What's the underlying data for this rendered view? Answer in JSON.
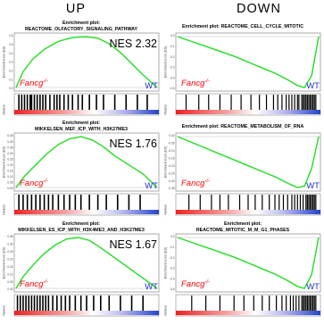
{
  "headers": {
    "up": "UP",
    "down": "DOWN"
  },
  "colors": {
    "curve": "#22dd22",
    "fancg": "#ff0000",
    "wt": "#2233cc",
    "frame": "#888888"
  },
  "chart_data": [
    {
      "type": "line",
      "column": "UP",
      "title": [
        "Enrichment plot:",
        "REACTOME_OLFACTORY_SIGNALING_PATHWAY"
      ],
      "ylabel": "Enrichment score (ES)",
      "ylabel_lower": "Ranked",
      "yticks": [
        "0.6",
        "0.5",
        "0.4",
        "0.3",
        "0.2",
        "0.1",
        "0.0"
      ],
      "nes_label": "NES 2.32",
      "fancg_label": "Fancg-/-",
      "wt_label": "WT",
      "curve": {
        "x": [
          0,
          0.05,
          0.12,
          0.2,
          0.3,
          0.4,
          0.5,
          0.58,
          0.66,
          0.74,
          0.82,
          0.9,
          1.0
        ],
        "y": [
          0,
          0.2,
          0.36,
          0.48,
          0.58,
          0.63,
          0.64,
          0.62,
          0.55,
          0.44,
          0.3,
          0.16,
          0.0
        ]
      },
      "hits": [
        0.02,
        0.04,
        0.06,
        0.08,
        0.1,
        0.11,
        0.13,
        0.15,
        0.17,
        0.19,
        0.21,
        0.24,
        0.27,
        0.29,
        0.31,
        0.34,
        0.37,
        0.4,
        0.44,
        0.47,
        0.52,
        0.57,
        0.62,
        0.7,
        0.78,
        0.86,
        0.93
      ]
    },
    {
      "type": "line",
      "column": "DOWN",
      "title": [
        "Enrichment plot: REACTOME_CELL_CYCLE_MITOTIC"
      ],
      "ylabel": "Enrichment score (ES)",
      "ylabel_lower": "Ranked",
      "yticks": [
        "0.0",
        "-0.1",
        "-0.2",
        "-0.3",
        "-0.4",
        "-0.5"
      ],
      "nes_label": "",
      "fancg_label": "Fancg-/-",
      "wt_label": "WT",
      "curve": {
        "x": [
          0,
          0.1,
          0.2,
          0.3,
          0.4,
          0.5,
          0.6,
          0.7,
          0.78,
          0.85,
          0.9,
          0.95,
          1.0
        ],
        "y": [
          0,
          -0.05,
          -0.1,
          -0.15,
          -0.2,
          -0.26,
          -0.32,
          -0.38,
          -0.44,
          -0.5,
          -0.52,
          -0.4,
          0.0
        ]
      },
      "hits": [
        0.06,
        0.15,
        0.22,
        0.3,
        0.38,
        0.45,
        0.52,
        0.58,
        0.63,
        0.68,
        0.71,
        0.74,
        0.77,
        0.79,
        0.81,
        0.83,
        0.85,
        0.86,
        0.88,
        0.89,
        0.9,
        0.91,
        0.92,
        0.93,
        0.94,
        0.95,
        0.96,
        0.97,
        0.98
      ]
    },
    {
      "type": "line",
      "column": "UP",
      "title": [
        "Enrichment plot:",
        "MIKKELSEN_MEF_ICP_WITH_H3K27ME3"
      ],
      "ylabel": "Enrichment score (ES)",
      "ylabel_lower": "Ranked",
      "yticks": [
        "0.45",
        "0.40",
        "0.35",
        "0.30",
        "0.25",
        "0.20",
        "0.15",
        "0.10",
        "0.05",
        "0.00"
      ],
      "nes_label": "NES 1.76",
      "fancg_label": "Fancg-/-",
      "wt_label": "WT",
      "curve": {
        "x": [
          0,
          0.06,
          0.14,
          0.22,
          0.3,
          0.38,
          0.46,
          0.54,
          0.62,
          0.7,
          0.8,
          0.9,
          1.0
        ],
        "y": [
          0,
          0.1,
          0.2,
          0.3,
          0.38,
          0.43,
          0.45,
          0.42,
          0.36,
          0.28,
          0.2,
          0.12,
          0.0
        ]
      },
      "hits": [
        0.02,
        0.05,
        0.08,
        0.11,
        0.14,
        0.17,
        0.2,
        0.23,
        0.26,
        0.3,
        0.34,
        0.38,
        0.42,
        0.46,
        0.52,
        0.58,
        0.64,
        0.72,
        0.8,
        0.88
      ]
    },
    {
      "type": "line",
      "column": "DOWN",
      "title": [
        "Enrichment plot: REACTOME_METABOLISM_OF_RNA"
      ],
      "ylabel": "Enrichment score (ES)",
      "ylabel_lower": "Ranked",
      "yticks": [
        "0.00",
        "-0.05",
        "-0.10",
        "-0.15",
        "-0.20",
        "-0.25",
        "-0.30",
        "-0.35"
      ],
      "nes_label": "",
      "fancg_label": "Fancg-/-",
      "wt_label": "WT",
      "curve": {
        "x": [
          0,
          0.1,
          0.2,
          0.3,
          0.4,
          0.5,
          0.6,
          0.7,
          0.78,
          0.85,
          0.9,
          0.95,
          1.0
        ],
        "y": [
          0,
          -0.04,
          -0.08,
          -0.12,
          -0.16,
          -0.2,
          -0.24,
          -0.28,
          -0.32,
          -0.35,
          -0.34,
          -0.22,
          0.0
        ]
      },
      "hits": [
        0.08,
        0.16,
        0.24,
        0.3,
        0.36,
        0.44,
        0.5,
        0.55,
        0.6,
        0.65,
        0.69,
        0.72,
        0.75,
        0.78,
        0.81,
        0.83,
        0.85,
        0.87,
        0.89,
        0.91,
        0.92,
        0.93,
        0.94,
        0.95,
        0.96,
        0.97,
        0.98
      ]
    },
    {
      "type": "line",
      "column": "UP",
      "title": [
        "Enrichment plot:",
        "MIKKELSEN_ES_ICP_WITH_H3K4ME3_AND_H3K27ME3"
      ],
      "ylabel": "Enrichment score (ES)",
      "ylabel_lower": "Ranked",
      "yticks": [
        "0.35",
        "0.30",
        "0.25",
        "0.20",
        "0.15",
        "0.10",
        "0.05",
        "0.00"
      ],
      "nes_label": "NES 1.67",
      "fancg_label": "Fancg-/-",
      "wt_label": "WT",
      "curve": {
        "x": [
          0,
          0.05,
          0.12,
          0.2,
          0.28,
          0.36,
          0.44,
          0.52,
          0.6,
          0.7,
          0.8,
          0.9,
          1.0
        ],
        "y": [
          0,
          0.08,
          0.16,
          0.24,
          0.3,
          0.34,
          0.35,
          0.33,
          0.28,
          0.21,
          0.14,
          0.07,
          0.0
        ]
      },
      "hits": [
        0.01,
        0.03,
        0.05,
        0.07,
        0.09,
        0.11,
        0.13,
        0.15,
        0.17,
        0.19,
        0.21,
        0.23,
        0.26,
        0.29,
        0.32,
        0.35,
        0.38,
        0.42,
        0.46,
        0.5,
        0.55,
        0.6,
        0.66,
        0.74,
        0.82,
        0.9
      ]
    },
    {
      "type": "line",
      "column": "DOWN",
      "title": [
        "Enrichment plot:",
        "REACTOME_MITOTIC_M_M_G1_PHASES"
      ],
      "ylabel": "Enrichment score (ES)",
      "ylabel_lower": "Ranked",
      "yticks": [
        "0.0",
        "-0.1",
        "-0.2",
        "-0.3",
        "-0.4",
        "-0.5"
      ],
      "nes_label": "",
      "fancg_label": "Fancg-/-",
      "wt_label": "WT",
      "curve": {
        "x": [
          0,
          0.1,
          0.2,
          0.3,
          0.4,
          0.5,
          0.6,
          0.7,
          0.78,
          0.85,
          0.9,
          0.95,
          1.0
        ],
        "y": [
          0,
          -0.05,
          -0.1,
          -0.15,
          -0.2,
          -0.26,
          -0.32,
          -0.38,
          -0.44,
          -0.5,
          -0.52,
          -0.38,
          0.0
        ]
      },
      "hits": [
        0.1,
        0.2,
        0.3,
        0.4,
        0.47,
        0.54,
        0.6,
        0.65,
        0.7,
        0.74,
        0.77,
        0.8,
        0.82,
        0.84,
        0.86,
        0.88,
        0.89,
        0.9,
        0.91,
        0.92,
        0.93,
        0.94,
        0.95,
        0.96,
        0.97,
        0.98
      ]
    }
  ]
}
